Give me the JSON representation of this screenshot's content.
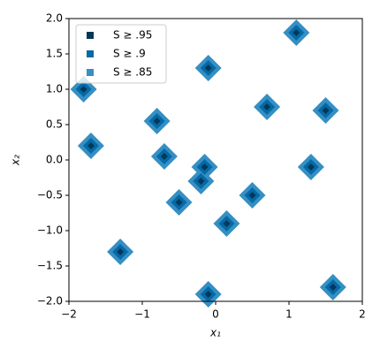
{
  "chart_data": {
    "type": "scatter",
    "xlabel": "x₁",
    "ylabel": "x₂",
    "xlim": [
      -2,
      2
    ],
    "ylim": [
      -2,
      2
    ],
    "xticks": [
      {
        "value": -2,
        "label": "−2"
      },
      {
        "value": -1,
        "label": "−1"
      },
      0,
      1,
      2
    ],
    "yticks": [
      {
        "value": -2,
        "label": "−2.0"
      },
      {
        "value": -1.5,
        "label": "−1.5"
      },
      {
        "value": -1,
        "label": "−1.0"
      },
      {
        "value": -0.5,
        "label": "−0.5"
      },
      {
        "value": 0,
        "label": "0.0"
      },
      {
        "value": 0.5,
        "label": "0.5"
      },
      {
        "value": 1,
        "label": "1.0"
      },
      {
        "value": 1.5,
        "label": "1.5"
      },
      {
        "value": 2,
        "label": "2.0"
      }
    ],
    "legend": "upper left",
    "series": [
      {
        "name": "S ≥ .85",
        "color": "#358fc3",
        "marker_size": 15,
        "x": [
          -1.8,
          -1.7,
          -0.8,
          -0.7,
          -0.1,
          1.1,
          0.7,
          1.5,
          -0.15,
          -0.2,
          -0.5,
          0.5,
          1.3,
          0.15,
          -1.3,
          -0.1,
          1.6
        ],
        "y": [
          1.0,
          0.2,
          0.55,
          0.05,
          1.3,
          1.8,
          0.75,
          0.7,
          -0.1,
          -0.3,
          -0.6,
          -0.5,
          -0.1,
          -0.9,
          -1.3,
          -1.9,
          -1.8
        ]
      },
      {
        "name": "S ≥ .9",
        "color": "#0569a6",
        "marker_size": 9,
        "x": [
          -1.8,
          -1.7,
          -0.8,
          -0.7,
          -0.1,
          1.1,
          0.7,
          1.5,
          -0.15,
          -0.2,
          -0.5,
          0.5,
          1.3,
          0.15,
          -1.3,
          -0.1,
          1.6
        ],
        "y": [
          1.0,
          0.2,
          0.55,
          0.05,
          1.3,
          1.8,
          0.75,
          0.7,
          -0.1,
          -0.3,
          -0.6,
          -0.5,
          -0.1,
          -0.9,
          -1.3,
          -1.9,
          -1.8
        ]
      },
      {
        "name": "S ≥ .95",
        "color": "#023858",
        "marker_size": 4,
        "x": [
          -1.8,
          -1.7,
          -0.8,
          -0.7,
          -0.1,
          1.1,
          0.7,
          1.5,
          -0.15,
          -0.2,
          -0.5,
          0.5,
          1.3,
          0.15,
          -1.3,
          -0.1,
          1.6
        ],
        "y": [
          1.0,
          0.2,
          0.55,
          0.05,
          1.3,
          1.8,
          0.75,
          0.7,
          -0.1,
          -0.3,
          -0.6,
          -0.5,
          -0.1,
          -0.9,
          -1.3,
          -1.9,
          -1.8
        ]
      }
    ]
  }
}
